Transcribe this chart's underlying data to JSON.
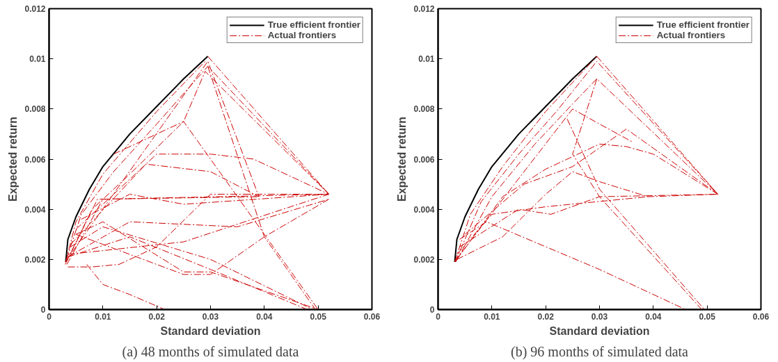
{
  "chart_data": [
    {
      "type": "line",
      "xlabel": "Standard deviation",
      "ylabel": "Expected return",
      "annotations": [
        "(a) 48 months of simulated data"
      ],
      "xlim": [
        0,
        0.06
      ],
      "ylim": [
        0,
        0.012
      ],
      "xticks": [
        0,
        0.01,
        0.02,
        0.03,
        0.04,
        0.05,
        0.06
      ],
      "yticks": [
        0,
        0.002,
        0.004,
        0.006,
        0.008,
        0.01,
        0.012
      ],
      "grid": false,
      "legend": "top right",
      "marker": "none",
      "series": [
        {
          "name": "True efficient frontier",
          "color": "#000000",
          "line_style": "solid",
          "x": [
            0.0031,
            0.0035,
            0.005,
            0.0075,
            0.01,
            0.015,
            0.02,
            0.025,
            0.0295
          ],
          "values": [
            0.0019,
            0.0028,
            0.0037,
            0.0048,
            0.0057,
            0.007,
            0.0081,
            0.0092,
            0.0101
          ]
        },
        {
          "name": "Actual frontiers",
          "color": "#cc0000",
          "line_style": "dashed",
          "x": [
            0.0031,
            0.005,
            0.01,
            0.02,
            0.029,
            null,
            0.0032,
            0.006,
            0.012,
            0.02,
            0.0295,
            0.052,
            null,
            0.0032,
            0.008,
            0.015,
            0.025,
            0.029,
            0.052,
            null,
            0.003,
            0.009,
            0.039,
            null,
            0.0033,
            0.01,
            0.052,
            null,
            0.003,
            0.0295,
            0.039,
            null,
            0.0035,
            0.008,
            0.013,
            0.02,
            0.03,
            0.052,
            null,
            0.007,
            0.01,
            0.015,
            0.0215,
            null,
            0.0035,
            0.015,
            0.03,
            0.048,
            null,
            0.004,
            0.01,
            0.03,
            0.049,
            null,
            0.005,
            0.01,
            0.025,
            0.03,
            0.05,
            null,
            0.0035,
            0.025,
            0.052,
            null,
            0.012,
            0.025,
            0.05,
            null,
            0.0295,
            0.04,
            0.0495,
            null,
            0.005,
            0.02,
            0.03,
            0.038,
            0.052,
            null,
            0.004,
            0.018,
            0.03,
            0.039,
            null,
            0.006,
            0.015,
            0.025,
            0.052,
            null,
            0.0035,
            0.015,
            0.035,
            0.052,
            null,
            0.005,
            0.025,
            0.03,
            0.04,
            0.052,
            null,
            0.0295,
            0.052
          ],
          "values": [
            0.0019,
            0.0035,
            0.0054,
            0.0079,
            0.0099,
            null,
            0.002,
            0.0038,
            0.0055,
            0.0074,
            0.0097,
            0.0046,
            null,
            0.0019,
            0.004,
            0.0054,
            0.0075,
            0.0095,
            0.0046,
            null,
            0.0018,
            0.0044,
            0.0045,
            null,
            0.0018,
            0.0044,
            0.0046,
            null,
            0.0019,
            0.0099,
            0.0045,
            null,
            0.0017,
            0.0017,
            0.0018,
            0.0025,
            0.0046,
            0.0046,
            null,
            0.0018,
            0.001,
            0.0006,
            0,
            null,
            0.0021,
            0.0029,
            0.0016,
            0,
            null,
            0.0025,
            0.0033,
            0.002,
            0,
            null,
            0.003,
            0.0035,
            0.0015,
            0.0015,
            0,
            null,
            0.0022,
            0.0027,
            0.0046,
            null,
            0.0062,
            0.0075,
            0,
            null,
            0.0097,
            0.0029,
            0,
            null,
            0.0032,
            0.0062,
            0.0062,
            0.006,
            0.0046,
            null,
            0.0026,
            0.0058,
            0.0055,
            0.0045,
            null,
            0.0036,
            0.0046,
            0.0042,
            0.0046,
            null,
            0.0021,
            0.0035,
            0.0033,
            0.0044,
            null,
            0.003,
            0.0014,
            0.0014,
            0.0029,
            0.0044,
            null,
            0.0101,
            0.0046
          ]
        }
      ]
    },
    {
      "type": "line",
      "xlabel": "Standard deviation",
      "ylabel": "Expected return",
      "annotations": [
        "(b) 96 months of simulated data"
      ],
      "xlim": [
        0,
        0.06
      ],
      "ylim": [
        0,
        0.012
      ],
      "xticks": [
        0,
        0.01,
        0.02,
        0.03,
        0.04,
        0.05,
        0.06
      ],
      "yticks": [
        0,
        0.002,
        0.004,
        0.006,
        0.008,
        0.01,
        0.012
      ],
      "grid": false,
      "legend": "top right",
      "marker": "none",
      "series": [
        {
          "name": "True efficient frontier",
          "color": "#000000",
          "line_style": "solid",
          "x": [
            0.0031,
            0.0035,
            0.005,
            0.0075,
            0.01,
            0.015,
            0.02,
            0.025,
            0.0295
          ],
          "values": [
            0.0019,
            0.0028,
            0.0037,
            0.0048,
            0.0057,
            0.007,
            0.0081,
            0.0092,
            0.0101
          ]
        },
        {
          "name": "Actual frontiers",
          "color": "#cc0000",
          "line_style": "dashed",
          "x": [
            0.0031,
            0.006,
            0.012,
            0.02,
            0.0295,
            null,
            0.0032,
            0.008,
            0.015,
            0.022,
            0.0295,
            0.052,
            null,
            0.0033,
            0.01,
            0.018,
            0.025,
            0.0295,
            0.052,
            null,
            0.0035,
            0.012,
            0.02,
            0.03,
            0.035,
            0.04,
            0.052,
            null,
            0.004,
            0.015,
            0.021,
            0.03,
            0.052,
            null,
            0.0035,
            0.01,
            0.02,
            0.039,
            null,
            0.004,
            0.009,
            0.03,
            0.046,
            null,
            0.0295,
            0.025,
            0.03,
            0.049,
            null,
            0.024,
            0.03,
            0.0495,
            null,
            0.0035,
            0.012,
            0.02,
            0.025,
            0.03,
            0.039,
            0.052,
            null,
            0.005,
            0.016,
            0.025,
            0.035,
            0.052,
            null,
            0.003,
            0.025,
            0.03,
            0.036,
            null,
            0.0295,
            0.052
          ],
          "values": [
            0.0019,
            0.0038,
            0.0057,
            0.0079,
            0.0101,
            null,
            0.0019,
            0.0043,
            0.0062,
            0.0079,
            0.0099,
            0.0046,
            null,
            0.0019,
            0.0045,
            0.0066,
            0.0082,
            0.0092,
            0.0046,
            null,
            0.002,
            0.0045,
            0.0056,
            0.0066,
            0.0065,
            0.0062,
            0.0046,
            null,
            0.0025,
            0.004,
            0.0038,
            0.0045,
            0.0046,
            null,
            0.0022,
            0.0038,
            0.0041,
            0.0045,
            null,
            0.0028,
            0.0035,
            0.0016,
            0,
            null,
            0.0092,
            0.0062,
            0.0045,
            0,
            null,
            0.0076,
            0.0048,
            0,
            null,
            0.002,
            0.0029,
            0.0046,
            0.0055,
            0.0051,
            0.0045,
            0.0046,
            null,
            0.003,
            0.005,
            0.0057,
            0.0072,
            0.0046,
            null,
            0.0019,
            0.008,
            0.0074,
            0.0067,
            null,
            0.0101,
            0.0046
          ]
        }
      ]
    }
  ]
}
